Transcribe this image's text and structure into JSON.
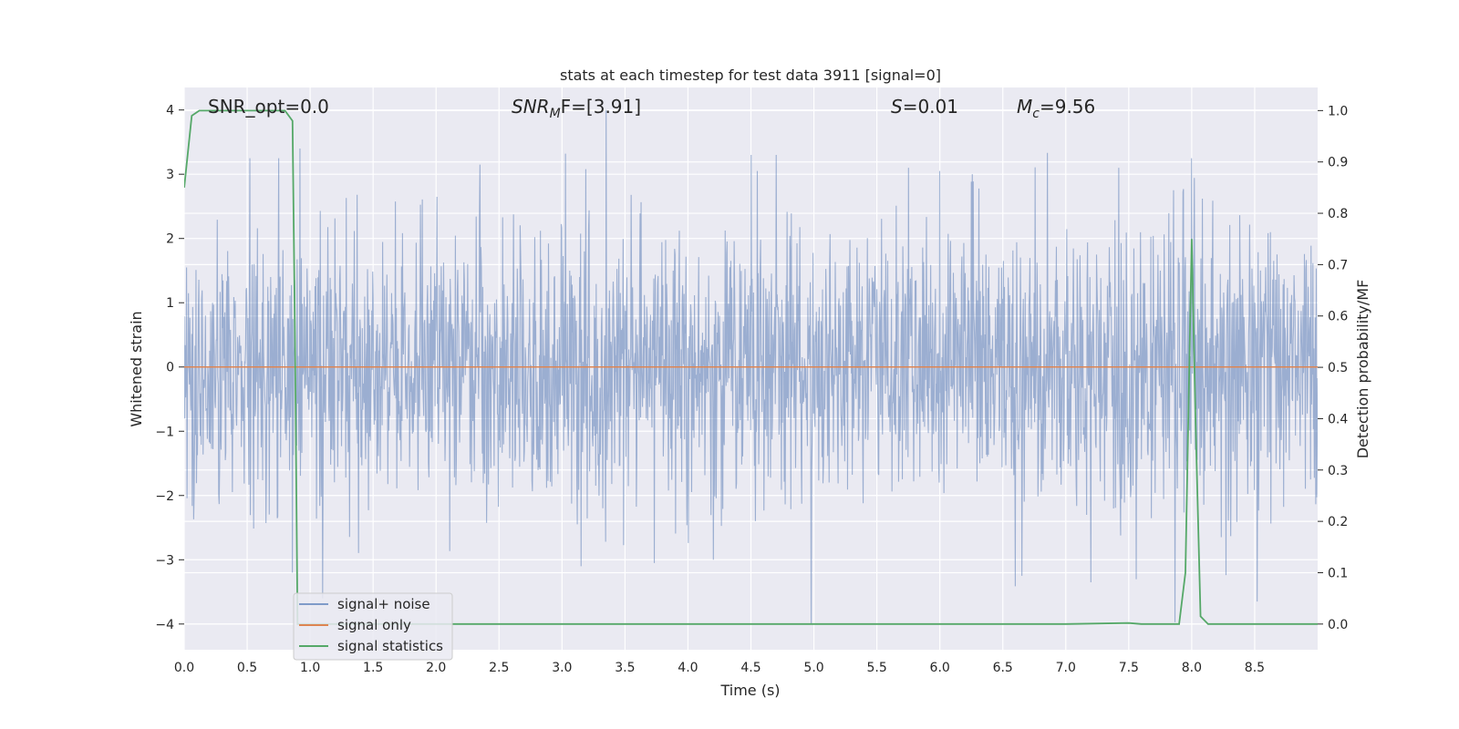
{
  "chart_data": {
    "type": "line",
    "title": "stats at each timestep for test data 3911 [signal=0]",
    "xlabel": "Time (s)",
    "ylabel": "Whitened strain",
    "y2label": "Detection probability/MF",
    "xlim": [
      0.0,
      9.0
    ],
    "ylim": [
      -4.4,
      4.35
    ],
    "y2lim": [
      -0.05,
      1.045
    ],
    "xticks": [
      "0.0",
      "0.5",
      "1.0",
      "1.5",
      "2.0",
      "2.5",
      "3.0",
      "3.5",
      "4.0",
      "4.5",
      "5.0",
      "5.5",
      "6.0",
      "6.5",
      "7.0",
      "7.5",
      "8.0",
      "8.5"
    ],
    "yticks": [
      "4",
      "3",
      "2",
      "1",
      "0",
      "−1",
      "−2",
      "−3",
      "−4"
    ],
    "y2ticks": [
      "1.0",
      "0.9",
      "0.8",
      "0.7",
      "0.6",
      "0.5",
      "0.4",
      "0.3",
      "0.2",
      "0.1",
      "0.0"
    ],
    "grid": true,
    "legend_position": "lower-left",
    "annotations": {
      "snr_opt": "SNR_opt=0.0",
      "snr_mf_label": "SNR",
      "snr_mf_sub": "M",
      "snr_mf_rest": "F=[3.91]",
      "s_label": "S",
      "s_rest": "=0.01",
      "mc_label": "M",
      "mc_sub": "c",
      "mc_rest": "=9.56"
    },
    "series": [
      {
        "name": "signal+ noise",
        "color": "#4c72b0",
        "description_axis": "left",
        "noise_envelope": {
          "typical_upper": 2.0,
          "typical_lower": -2.0,
          "max": 4.0,
          "min": -4.0
        },
        "spikes": [
          {
            "x": 0.52,
            "y": 3.25
          },
          {
            "x": 0.75,
            "y": 3.25
          },
          {
            "x": 0.92,
            "y": 3.4
          },
          {
            "x": 1.1,
            "y": -3.6
          },
          {
            "x": 0.86,
            "y": -3.2
          },
          {
            "x": 2.35,
            "y": 3.15
          },
          {
            "x": 3.35,
            "y": 4.0
          },
          {
            "x": 3.15,
            "y": -3.1
          },
          {
            "x": 4.5,
            "y": 3.3
          },
          {
            "x": 4.7,
            "y": 3.3
          },
          {
            "x": 4.55,
            "y": 3.05
          },
          {
            "x": 4.98,
            "y": -4.0
          },
          {
            "x": 4.2,
            "y": -3.0
          },
          {
            "x": 5.75,
            "y": 3.1
          },
          {
            "x": 6.0,
            "y": 3.05
          },
          {
            "x": 6.65,
            "y": -3.25
          },
          {
            "x": 7.2,
            "y": -3.35
          },
          {
            "x": 7.42,
            "y": 3.1
          },
          {
            "x": 8.0,
            "y": 3.25
          },
          {
            "x": 8.52,
            "y": -3.65
          }
        ]
      },
      {
        "name": "signal only",
        "color": "#dd8452",
        "x": [
          0.0,
          9.0
        ],
        "y": [
          0.0,
          0.0
        ]
      },
      {
        "name": "signal statistics",
        "color": "#55a868",
        "axis": "right",
        "x": [
          0.0,
          0.06,
          0.12,
          0.2,
          0.5,
          0.8,
          0.86,
          0.88,
          0.9,
          0.93,
          0.96,
          1.0,
          1.2,
          2.0,
          4.0,
          6.0,
          7.0,
          7.5,
          7.6,
          7.9,
          7.95,
          8.0,
          8.03,
          8.07,
          8.13,
          8.5,
          9.0
        ],
        "y": [
          0.85,
          0.99,
          1.0,
          1.0,
          1.0,
          1.0,
          0.98,
          0.55,
          0.0,
          0.0,
          0.0,
          0.0,
          0.0,
          0.0,
          0.0,
          0.0,
          0.0,
          0.002,
          0.0,
          0.0,
          0.1,
          0.75,
          0.4,
          0.015,
          0.0,
          0.0,
          0.0
        ]
      }
    ]
  }
}
